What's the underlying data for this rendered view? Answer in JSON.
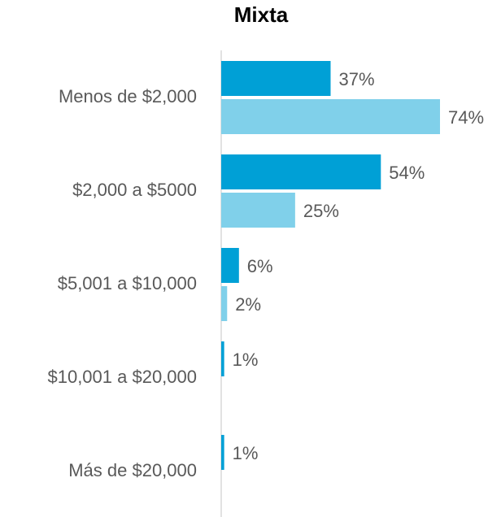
{
  "chart_data": {
    "type": "barh",
    "title": "Mixta",
    "categories": [
      "Menos de $2,000",
      "$2,000 a $5000",
      "$5,001 a $10,000",
      "$10,001 a $20,000",
      "Más de $20,000"
    ],
    "series": [
      {
        "color": "#00a0d6",
        "values": [
          37,
          54,
          6,
          1,
          1
        ],
        "value_labels": [
          "37%",
          "54%",
          "6%",
          "1%",
          "1%"
        ]
      },
      {
        "color": "#80d0ea",
        "values": [
          74,
          25,
          2,
          null,
          null
        ],
        "value_labels": [
          "74%",
          "25%",
          "2%",
          null,
          null
        ]
      }
    ]
  }
}
